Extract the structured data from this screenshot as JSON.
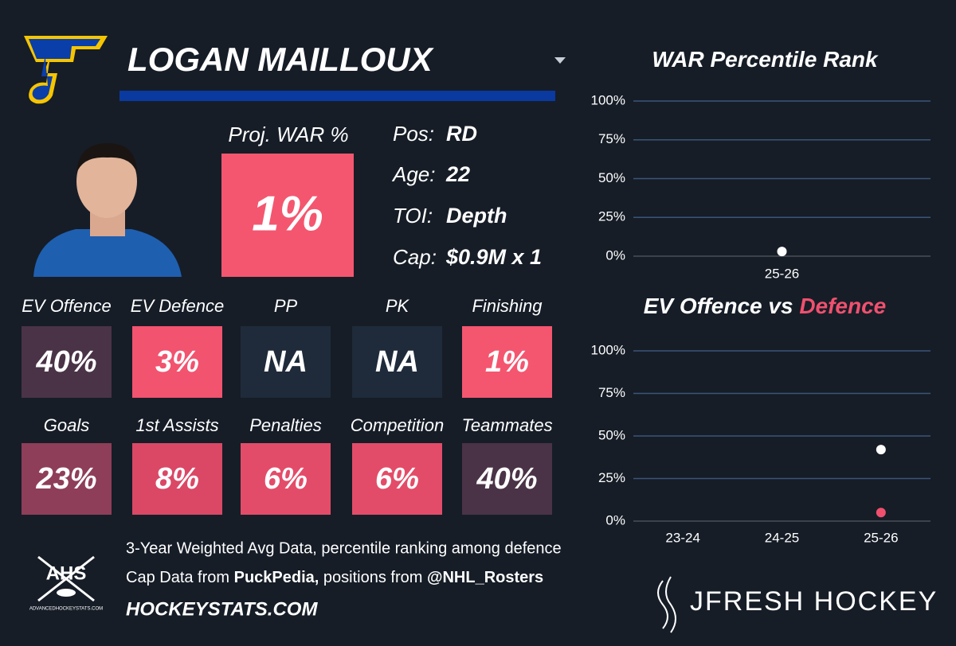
{
  "header": {
    "name": "LOGAN MAILLOUX"
  },
  "proj_war": {
    "label": "Proj. WAR %",
    "value": "1%",
    "color": "#f4566f"
  },
  "info": [
    {
      "label": "Pos:",
      "value": "RD"
    },
    {
      "label": "Age:",
      "value": "22"
    },
    {
      "label": "TOI:",
      "value": "Depth"
    },
    {
      "label": "Cap:",
      "value": "$0.9M x 1"
    }
  ],
  "tiles": [
    {
      "label": "EV Offence",
      "value": "40%",
      "color": "#4a3346"
    },
    {
      "label": "EV Defence",
      "value": "3%",
      "color": "#f2536f"
    },
    {
      "label": "PP",
      "value": "NA",
      "color": "#1f2b3a"
    },
    {
      "label": "PK",
      "value": "NA",
      "color": "#1f2b3a"
    },
    {
      "label": "Finishing",
      "value": "1%",
      "color": "#f4566f"
    },
    {
      "label": "Goals",
      "value": "23%",
      "color": "#8e3e58"
    },
    {
      "label": "1st Assists",
      "value": "8%",
      "color": "#da4866"
    },
    {
      "label": "Penalties",
      "value": "6%",
      "color": "#e34c69"
    },
    {
      "label": "Competition",
      "value": "6%",
      "color": "#e34c69"
    },
    {
      "label": "Teammates",
      "value": "40%",
      "color": "#4a3346"
    }
  ],
  "footer": {
    "note": "3-Year Weighted Avg Data, percentile ranking among defence",
    "cap_prefix": "Cap Data from",
    "cap_source": "PuckPedia,",
    "pos_prefix": "positions from",
    "pos_source": "@NHL_Rosters",
    "site": "HOCKEYSTATS.COM",
    "ahs": "AHS",
    "ahs_url": "ADVANCEDHOCKEYSTATS.COM",
    "brand": "JFRESH HOCKEY"
  },
  "chart_data": [
    {
      "type": "scatter",
      "title": "WAR Percentile Rank",
      "categories": [
        "25-26"
      ],
      "series": [
        {
          "color": "#ffffff",
          "values": [
            3
          ]
        }
      ],
      "ylim": [
        0,
        100
      ],
      "yticks": [
        {
          "value": 0,
          "label": "0%"
        },
        {
          "value": 25,
          "label": "25%"
        },
        {
          "value": 50,
          "label": "50%"
        },
        {
          "value": 75,
          "label": "75%"
        },
        {
          "value": 100,
          "label": "100%"
        }
      ],
      "grid": true
    },
    {
      "type": "scatter",
      "title": "EV Offence vs",
      "title_highlight": "Defence",
      "categories": [
        "23-24",
        "24-25",
        "25-26"
      ],
      "series": [
        {
          "color": "#ffffff",
          "values": [
            null,
            null,
            42
          ]
        },
        {
          "color": "#f0506e",
          "values": [
            null,
            null,
            5
          ]
        }
      ],
      "ylim": [
        0,
        100
      ],
      "yticks": [
        {
          "value": 0,
          "label": "0%"
        },
        {
          "value": 25,
          "label": "25%"
        },
        {
          "value": 50,
          "label": "50%"
        },
        {
          "value": 75,
          "label": "75%"
        },
        {
          "value": 100,
          "label": "100%"
        }
      ],
      "grid": true
    }
  ]
}
